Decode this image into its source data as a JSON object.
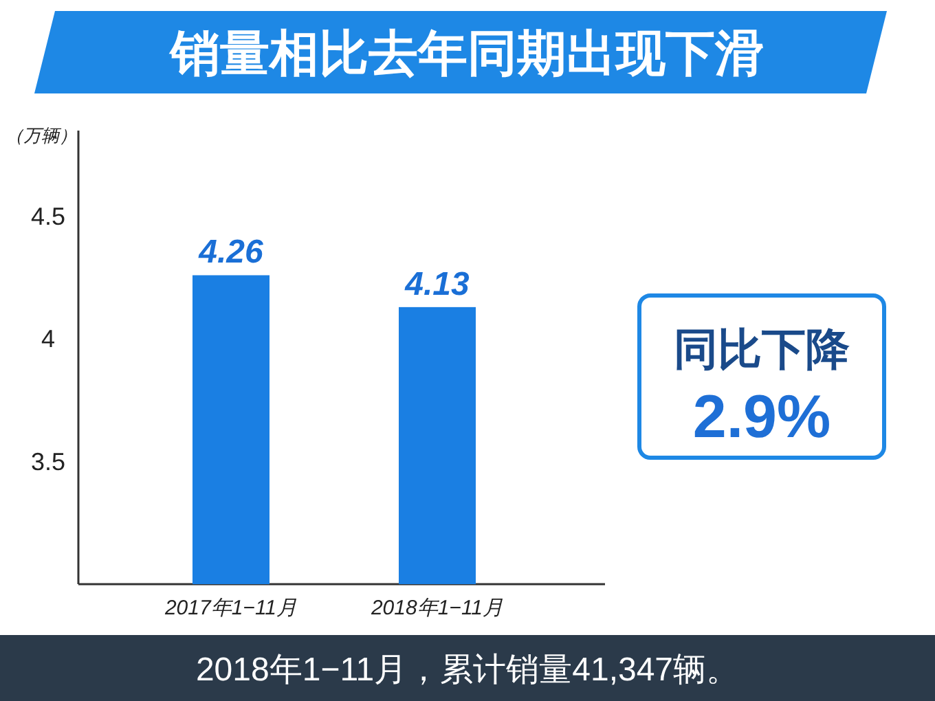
{
  "chart_data": {
    "type": "bar",
    "title": "销量相比去年同期出现下滑",
    "ylabel": "（万辆）",
    "categories": [
      "2017年1−11月",
      "2018年1−11月"
    ],
    "values": [
      4.26,
      4.13
    ],
    "color": "#1a7fe3",
    "ylim": [
      3,
      4.85
    ],
    "yticks": [
      3.5,
      4,
      4.5
    ],
    "data_labels": true,
    "annotations": [
      "同比下降",
      "2.9%",
      "2018年1−11月，累计销量41,347辆。"
    ]
  }
}
